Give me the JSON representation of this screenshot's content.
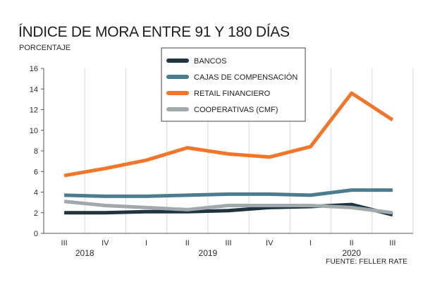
{
  "chart_data": {
    "type": "line",
    "title": "ÍNDICE DE MORA ENTRE 91 Y 180 DÍAS",
    "subtitle": "PORCENTAJE",
    "source": "FUENTE: FELLER RATE",
    "categories": [
      "III",
      "IV",
      "I",
      "II",
      "III",
      "IV",
      "I",
      "II",
      "III"
    ],
    "years": [
      {
        "label": "2018",
        "span": [
          0,
          1
        ]
      },
      {
        "label": "2019",
        "span": [
          2,
          5
        ]
      },
      {
        "label": "2020",
        "span": [
          6,
          8
        ]
      }
    ],
    "ylim": [
      0,
      16
    ],
    "yticks": [
      0,
      2,
      4,
      6,
      8,
      10,
      12,
      14,
      16
    ],
    "grid": "vertical",
    "legend_position": "top-center",
    "series": [
      {
        "name": "BANCOS",
        "color": "#1f3441",
        "values": [
          2.0,
          2.0,
          2.1,
          2.1,
          2.2,
          2.5,
          2.6,
          2.8,
          1.8
        ]
      },
      {
        "name": "CAJAS DE COMPENSACIÓN",
        "color": "#4d7d8c",
        "values": [
          3.7,
          3.6,
          3.6,
          3.7,
          3.8,
          3.8,
          3.7,
          4.2,
          4.2
        ]
      },
      {
        "name": "RETAIL FINANCIERO",
        "color": "#f2762a",
        "values": [
          5.6,
          6.3,
          7.1,
          8.3,
          7.7,
          7.4,
          8.4,
          13.6,
          11.0
        ]
      },
      {
        "name": "COOPERATIVAS (CMF)",
        "color": "#a2a9ac",
        "values": [
          3.1,
          2.7,
          2.5,
          2.3,
          2.7,
          2.7,
          2.7,
          2.5,
          2.0
        ]
      }
    ]
  }
}
